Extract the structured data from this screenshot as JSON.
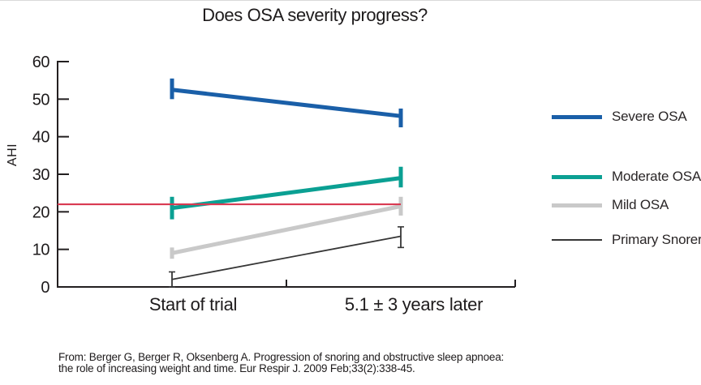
{
  "title": "Does OSA severity progress?",
  "chart_data": {
    "type": "line",
    "categories": [
      "Start of trial",
      "5.1 ± 3 years later"
    ],
    "xlabel": "",
    "ylabel": "AHI",
    "ylim": [
      0,
      60
    ],
    "yticks": [
      60,
      50,
      40,
      30,
      20,
      10,
      0
    ],
    "grid": false,
    "legend_position": "right",
    "series": [
      {
        "name": "Severe OSA",
        "values": [
          52.5,
          45.5
        ],
        "error_low": [
          50,
          42.5
        ],
        "error_high": [
          55.5,
          47.5
        ],
        "color": "#1a5fa8",
        "width": 5,
        "caps": false
      },
      {
        "name": "Moderate OSA",
        "values": [
          21,
          29
        ],
        "error_low": [
          18,
          26.5
        ],
        "error_high": [
          24,
          32
        ],
        "color": "#0ba093",
        "width": 5,
        "caps": false
      },
      {
        "name": "Mild OSA",
        "values": [
          9,
          21.5
        ],
        "error_low": [
          7.5,
          19
        ],
        "error_high": [
          10.5,
          24
        ],
        "color": "#c9c9c9",
        "width": 5,
        "caps": false
      },
      {
        "name": "Primary Snorers",
        "values": [
          2,
          13.5
        ],
        "error_low": [
          0,
          10.5
        ],
        "error_high": [
          4,
          16
        ],
        "color": "#363636",
        "width": 1.8,
        "caps": true
      }
    ],
    "reference_line": {
      "value": 22,
      "color": "#d93a52"
    },
    "axis_color": "#231f20"
  },
  "citation": {
    "line1": "From: Berger G, Berger R, Oksenberg A. Progression of snoring and obstructive sleep apnoea:",
    "line2": "the role of increasing weight and time. Eur Respir J. 2009 Feb;33(2):338-45."
  }
}
